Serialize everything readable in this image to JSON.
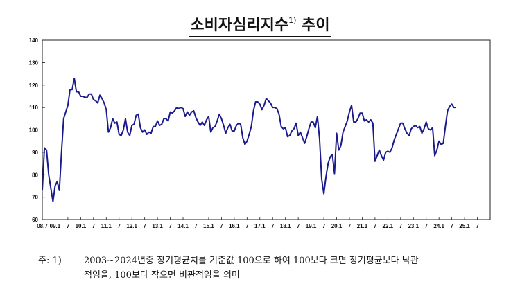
{
  "title": {
    "main": "소비자심리지수",
    "sup": "1)",
    "suffix": "추이"
  },
  "colors": {
    "line": "#1a1a8c",
    "reference": "#9a9a9a",
    "axis": "#222222"
  },
  "chart_data": {
    "type": "line",
    "title": "소비자심리지수 추이",
    "ylim": [
      60,
      140
    ],
    "yticks": [
      60,
      70,
      80,
      90,
      100,
      110,
      120,
      130,
      140
    ],
    "xlim": [
      0,
      210
    ],
    "reference_line": 100,
    "grid": false,
    "xtick_labels": [
      {
        "i": 0,
        "label": "08.7"
      },
      {
        "i": 6,
        "label": "09.1"
      },
      {
        "i": 12,
        "label": "7"
      },
      {
        "i": 18,
        "label": "10.1"
      },
      {
        "i": 24,
        "label": "7"
      },
      {
        "i": 30,
        "label": "11.1"
      },
      {
        "i": 36,
        "label": "7"
      },
      {
        "i": 42,
        "label": "12.1"
      },
      {
        "i": 48,
        "label": "7"
      },
      {
        "i": 54,
        "label": "13.1"
      },
      {
        "i": 60,
        "label": "7"
      },
      {
        "i": 66,
        "label": "14.1"
      },
      {
        "i": 72,
        "label": "7"
      },
      {
        "i": 78,
        "label": "15.1"
      },
      {
        "i": 84,
        "label": "7"
      },
      {
        "i": 90,
        "label": "16.1"
      },
      {
        "i": 96,
        "label": "7"
      },
      {
        "i": 102,
        "label": "17.1"
      },
      {
        "i": 108,
        "label": "7"
      },
      {
        "i": 114,
        "label": "18.1"
      },
      {
        "i": 120,
        "label": "7"
      },
      {
        "i": 126,
        "label": "19.1"
      },
      {
        "i": 132,
        "label": "7"
      },
      {
        "i": 138,
        "label": "20.1"
      },
      {
        "i": 144,
        "label": "7"
      },
      {
        "i": 150,
        "label": "21.1"
      },
      {
        "i": 156,
        "label": "7"
      },
      {
        "i": 162,
        "label": "22.1"
      },
      {
        "i": 168,
        "label": "7"
      },
      {
        "i": 174,
        "label": "23.1"
      },
      {
        "i": 180,
        "label": "7"
      },
      {
        "i": 186,
        "label": "24.1"
      },
      {
        "i": 192,
        "label": "7"
      },
      {
        "i": 198,
        "label": "25.1"
      },
      {
        "i": 204,
        "label": "7"
      }
    ],
    "series": [
      {
        "values": [
          73,
          92,
          91,
          80,
          74,
          68,
          75,
          77,
          73,
          90,
          105,
          108,
          111,
          118,
          118,
          123,
          117,
          117,
          115,
          115,
          114.5,
          114.5,
          116,
          116,
          113.5,
          113,
          112,
          115.5,
          114,
          112,
          109,
          99,
          101,
          105,
          103,
          103.5,
          98,
          97.5,
          100,
          105,
          99,
          97.5,
          102,
          102.5,
          106.5,
          107,
          101,
          99,
          100,
          98,
          99,
          98.5,
          101.5,
          101.5,
          104,
          102,
          102.5,
          105,
          105,
          104,
          108,
          107.5,
          108.5,
          110,
          109.5,
          110,
          109.5,
          106,
          108,
          106.5,
          108,
          108.5,
          105.5,
          103.5,
          102,
          103.5,
          102,
          104.5,
          106,
          99,
          101,
          101.5,
          104,
          107,
          105,
          102,
          98.5,
          101,
          102.5,
          99.5,
          99.5,
          102,
          103,
          102.5,
          96.5,
          93.5,
          95,
          98,
          101.5,
          108.5,
          112.5,
          112.5,
          111.5,
          109,
          111,
          114,
          113,
          112,
          110,
          110,
          109.5,
          107,
          101.5,
          100.5,
          101,
          97,
          97.5,
          99.5,
          100.5,
          103,
          97.5,
          99,
          96.5,
          94,
          97,
          100.5,
          103.5,
          103.5,
          101,
          106,
          96,
          78,
          71.5,
          79,
          85,
          88,
          89,
          80.5,
          98.5,
          91,
          93,
          99,
          101.5,
          104,
          108,
          111,
          103.5,
          103.5,
          105,
          107.5,
          107.5,
          104,
          104.5,
          103.5,
          104.5,
          103,
          86,
          88.5,
          91,
          88.5,
          86.5,
          90,
          90.5,
          90,
          92,
          95.5,
          98,
          100.5,
          103,
          103,
          100.5,
          98.5,
          97.5,
          100.5,
          101.5,
          102,
          101,
          101.5,
          98.5,
          100.5,
          103.5,
          100.5,
          100,
          101,
          88.5,
          91,
          95,
          93.5,
          94,
          101.5,
          108.5,
          110.5,
          111.5,
          110,
          110
        ]
      }
    ]
  },
  "footnote": {
    "prefix": "주: 1)",
    "line1": "2003~2024년중 장기평균치를 기준값 100으로 하여 100보다 크면 장기평균보다 낙관",
    "line2": "적임을, 100보다 작으면 비관적임을 의미"
  }
}
